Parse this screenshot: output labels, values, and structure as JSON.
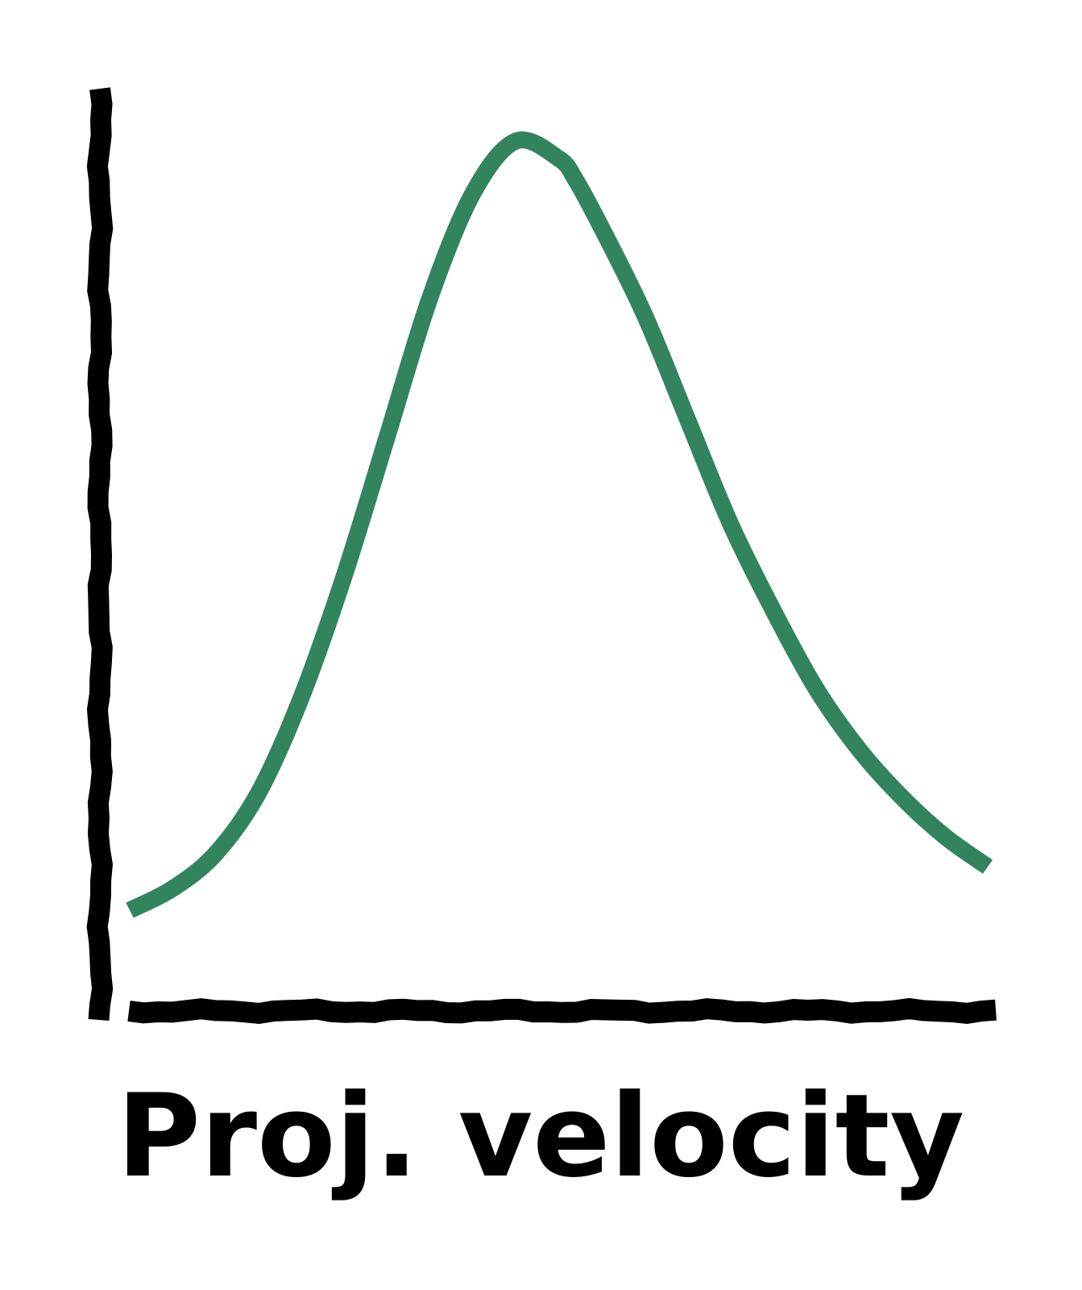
{
  "chart_data": {
    "type": "line",
    "title": "",
    "xlabel": "Proj. velocity",
    "ylabel": "",
    "xlim": [
      0,
      1
    ],
    "ylim": [
      0,
      1
    ],
    "grid": false,
    "ticks": false,
    "style": "xkcd-sketch",
    "series": [
      {
        "color": "#31845e",
        "x": [
          0.0,
          0.05,
          0.1,
          0.15,
          0.2,
          0.25,
          0.3,
          0.35,
          0.4,
          0.45,
          0.5,
          0.52,
          0.55,
          0.6,
          0.65,
          0.7,
          0.75,
          0.8,
          0.85,
          0.9,
          0.95,
          1.0
        ],
        "y": [
          0.115,
          0.14,
          0.18,
          0.25,
          0.36,
          0.5,
          0.66,
          0.82,
          0.94,
          1.0,
          0.98,
          0.955,
          0.9,
          0.8,
          0.68,
          0.56,
          0.46,
          0.37,
          0.3,
          0.245,
          0.2,
          0.165
        ]
      }
    ],
    "colors": {
      "axes": "#000000",
      "line": "#31845e"
    }
  }
}
